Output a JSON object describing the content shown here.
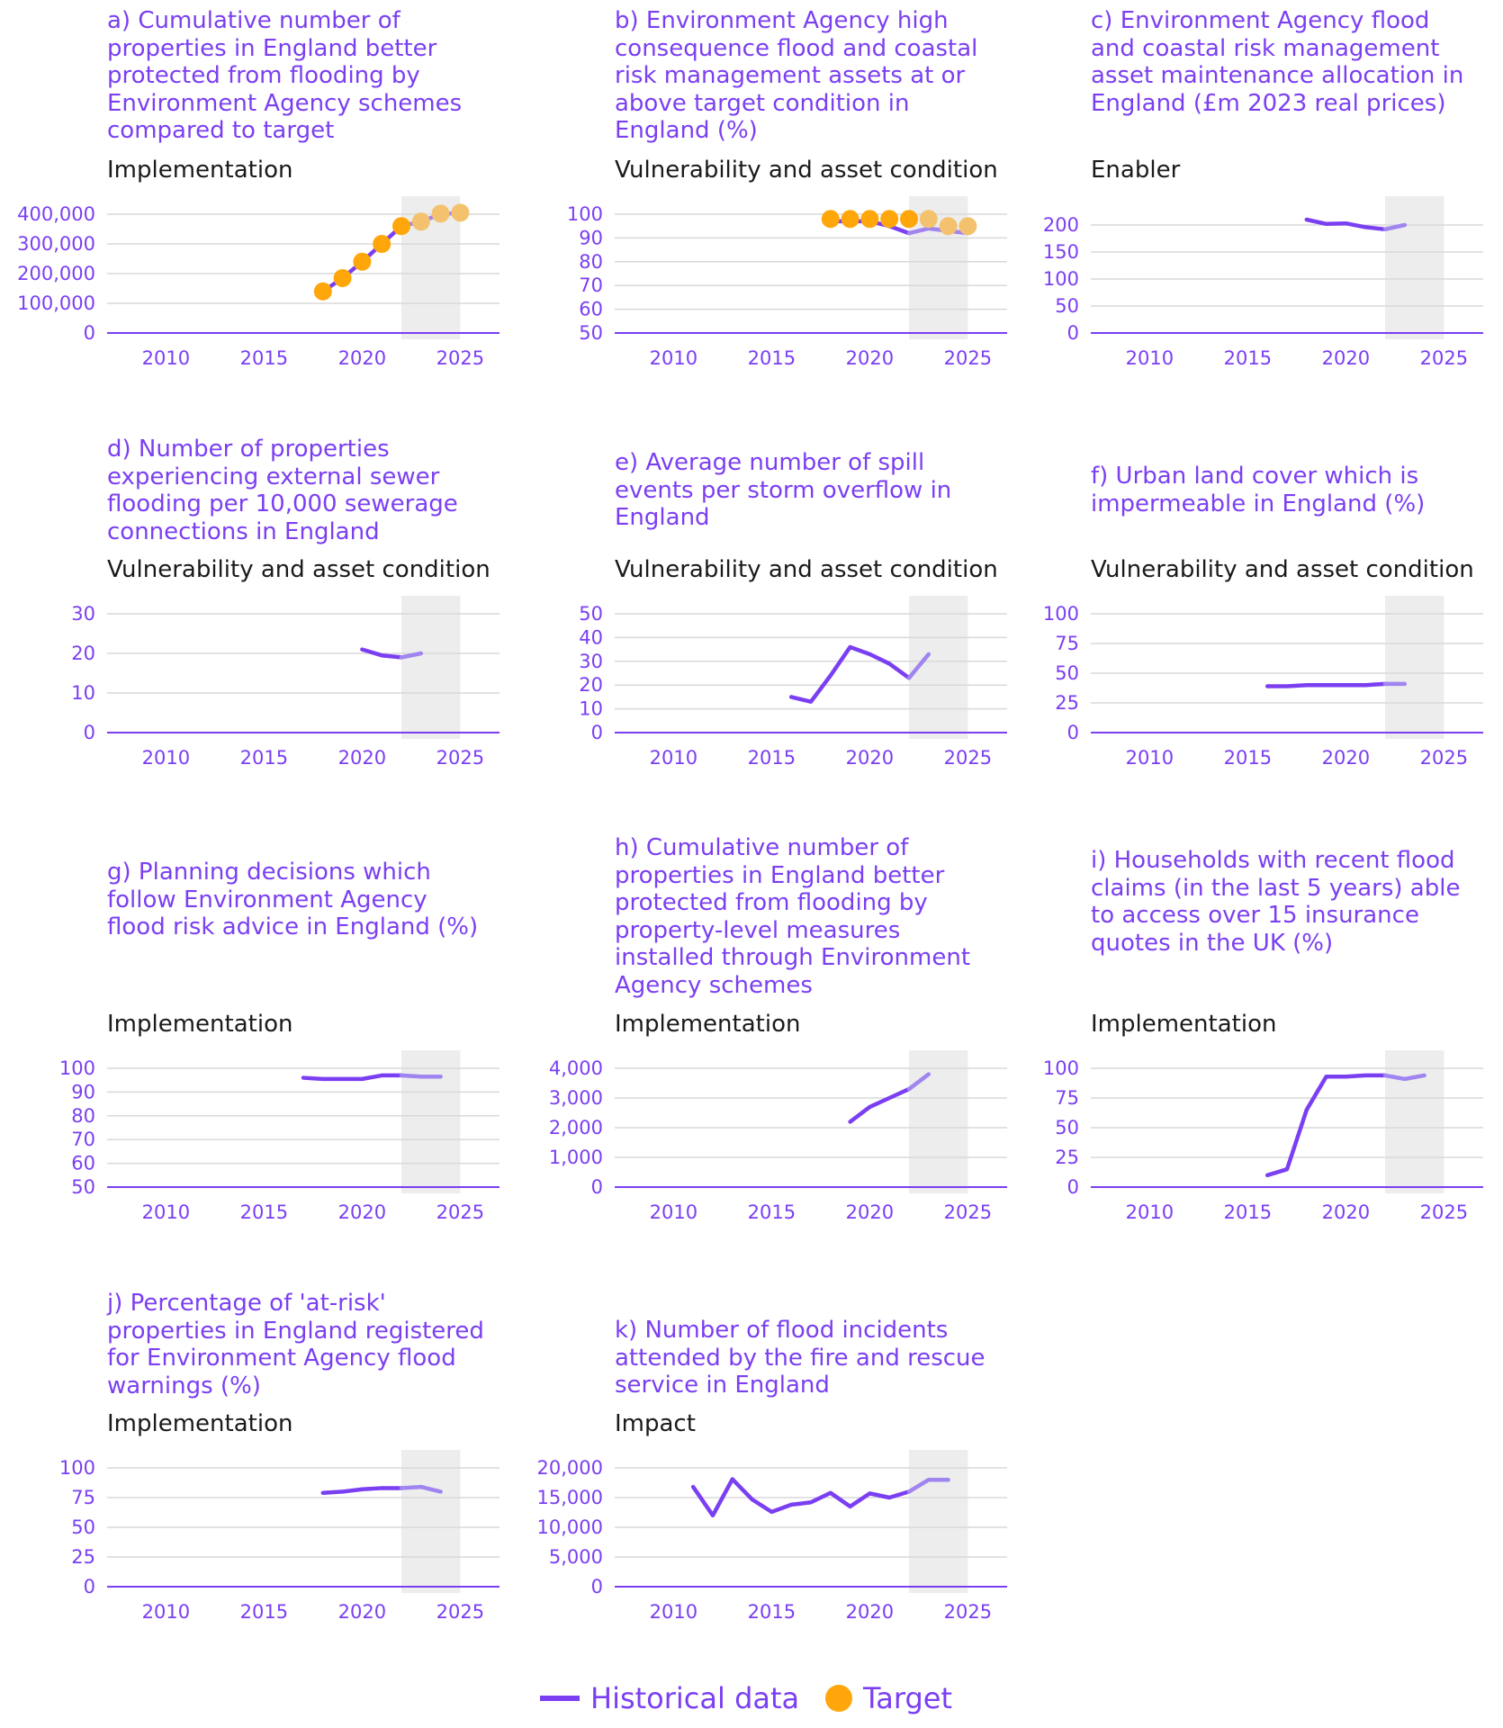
{
  "colors": {
    "historical": "#7B3FF2",
    "projection": "#A084F0",
    "target": "#FFA60A",
    "target_faded": "#F4C26E",
    "shading": "#EDEDED",
    "grid": "#D9D9D9"
  },
  "legend": {
    "historical": "Historical data",
    "target": "Target"
  },
  "chart_data": [
    {
      "id": "a",
      "type": "line",
      "title": "a) Cumulative number of properties in England better protected from flooding by Environment Agency schemes compared to target",
      "category": "Implementation",
      "xlim": [
        2007,
        2027
      ],
      "xticks": [
        2010,
        2015,
        2020,
        2025
      ],
      "ylim": [
        0,
        400000
      ],
      "yticks": [
        0,
        100000,
        200000,
        300000,
        400000
      ],
      "yticklabels": [
        "0",
        "100,000",
        "200,000",
        "300,000",
        "400,000"
      ],
      "shaded_from": 2022,
      "shaded_to": 2025,
      "series": [
        {
          "role": "historical",
          "x": [
            2018,
            2019,
            2020,
            2021,
            2022
          ],
          "values": [
            140000,
            185000,
            240000,
            300000,
            360000
          ]
        },
        {
          "role": "projection",
          "x": [
            2022,
            2023,
            2024,
            2025
          ],
          "values": [
            360000,
            375000,
            400000,
            405000
          ]
        },
        {
          "role": "target",
          "x": [
            2018,
            2019,
            2020,
            2021,
            2022,
            2023,
            2024,
            2025
          ],
          "values": [
            140000,
            185000,
            240000,
            300000,
            360000,
            375000,
            402000,
            405000
          ]
        }
      ]
    },
    {
      "id": "b",
      "type": "line",
      "title": "b) Environment Agency high consequence flood and coastal risk management assets at or above target condition in England (%)",
      "category": "Vulnerability and asset condition",
      "xlim": [
        2007,
        2027
      ],
      "xticks": [
        2010,
        2015,
        2020,
        2025
      ],
      "ylim": [
        50,
        100
      ],
      "yticks": [
        50,
        60,
        70,
        80,
        90,
        100
      ],
      "yticklabels": [
        "50",
        "60",
        "70",
        "80",
        "90",
        "100"
      ],
      "shaded_from": 2022,
      "shaded_to": 2025,
      "series": [
        {
          "role": "historical",
          "x": [
            2018,
            2019,
            2020,
            2021,
            2022
          ],
          "values": [
            97,
            97,
            97,
            95,
            92
          ]
        },
        {
          "role": "projection",
          "x": [
            2022,
            2023,
            2024,
            2025
          ],
          "values": [
            92,
            94,
            93,
            92
          ]
        },
        {
          "role": "target",
          "x": [
            2018,
            2019,
            2020,
            2021,
            2022,
            2023,
            2024,
            2025
          ],
          "values": [
            98,
            98,
            98,
            98,
            98,
            98,
            95,
            95
          ]
        }
      ]
    },
    {
      "id": "c",
      "type": "line",
      "title": "c) Environment Agency flood and coastal risk management asset maintenance allocation in England (£m 2023 real prices)",
      "category": "Enabler",
      "xlim": [
        2007,
        2027
      ],
      "xticks": [
        2010,
        2015,
        2020,
        2025
      ],
      "ylim": [
        0,
        220
      ],
      "yticks": [
        0,
        50,
        100,
        150,
        200
      ],
      "yticklabels": [
        "0",
        "50",
        "100",
        "150",
        "200"
      ],
      "shaded_from": 2022,
      "shaded_to": 2025,
      "series": [
        {
          "role": "historical",
          "x": [
            2018,
            2019,
            2020,
            2021,
            2022
          ],
          "values": [
            210,
            202,
            203,
            196,
            192
          ]
        },
        {
          "role": "projection",
          "x": [
            2022,
            2023
          ],
          "values": [
            192,
            200
          ]
        }
      ]
    },
    {
      "id": "d",
      "type": "line",
      "title": "d) Number of properties experiencing external sewer flooding per 10,000 sewerage connections in England",
      "category": "Vulnerability and asset condition",
      "xlim": [
        2007,
        2027
      ],
      "xticks": [
        2010,
        2015,
        2020,
        2025
      ],
      "ylim": [
        0,
        30
      ],
      "yticks": [
        0,
        10,
        20,
        30
      ],
      "yticklabels": [
        "0",
        "10",
        "20",
        "30"
      ],
      "shaded_from": 2022,
      "shaded_to": 2025,
      "series": [
        {
          "role": "historical",
          "x": [
            2020,
            2021,
            2022
          ],
          "values": [
            21,
            19.5,
            19
          ]
        },
        {
          "role": "projection",
          "x": [
            2022,
            2023
          ],
          "values": [
            19,
            20
          ]
        }
      ]
    },
    {
      "id": "e",
      "type": "line",
      "title": "e) Average number of spill events per storm overflow in England",
      "category": "Vulnerability and asset condition",
      "xlim": [
        2007,
        2027
      ],
      "xticks": [
        2010,
        2015,
        2020,
        2025
      ],
      "ylim": [
        0,
        50
      ],
      "yticks": [
        0,
        10,
        20,
        30,
        40,
        50
      ],
      "yticklabels": [
        "0",
        "10",
        "20",
        "30",
        "40",
        "50"
      ],
      "shaded_from": 2022,
      "shaded_to": 2025,
      "series": [
        {
          "role": "historical",
          "x": [
            2016,
            2017,
            2018,
            2019,
            2020,
            2021,
            2022
          ],
          "values": [
            15,
            13,
            24,
            36,
            33,
            29,
            23
          ]
        },
        {
          "role": "projection",
          "x": [
            2022,
            2023
          ],
          "values": [
            23,
            33
          ]
        }
      ]
    },
    {
      "id": "f",
      "type": "line",
      "title": "f) Urban land cover which is impermeable in England (%)",
      "category": "Vulnerability and asset condition",
      "xlim": [
        2007,
        2027
      ],
      "xticks": [
        2010,
        2015,
        2020,
        2025
      ],
      "ylim": [
        0,
        100
      ],
      "yticks": [
        0,
        25,
        50,
        75,
        100
      ],
      "yticklabels": [
        "0",
        "25",
        "50",
        "75",
        "100"
      ],
      "shaded_from": 2022,
      "shaded_to": 2025,
      "series": [
        {
          "role": "historical",
          "x": [
            2016,
            2017,
            2018,
            2019,
            2020,
            2021,
            2022
          ],
          "values": [
            39,
            39,
            40,
            40,
            40,
            40,
            41
          ]
        },
        {
          "role": "projection",
          "x": [
            2022,
            2023
          ],
          "values": [
            41,
            41
          ]
        }
      ]
    },
    {
      "id": "g",
      "type": "line",
      "title": "g) Planning decisions which follow Environment Agency flood risk advice in England (%)",
      "category": "Implementation",
      "xlim": [
        2007,
        2027
      ],
      "xticks": [
        2010,
        2015,
        2020,
        2025
      ],
      "ylim": [
        50,
        100
      ],
      "yticks": [
        50,
        60,
        70,
        80,
        90,
        100
      ],
      "yticklabels": [
        "50",
        "60",
        "70",
        "80",
        "90",
        "100"
      ],
      "shaded_from": 2022,
      "shaded_to": 2025,
      "series": [
        {
          "role": "historical",
          "x": [
            2017,
            2018,
            2019,
            2020,
            2021,
            2022
          ],
          "values": [
            96,
            95.5,
            95.5,
            95.5,
            97,
            97
          ]
        },
        {
          "role": "projection",
          "x": [
            2022,
            2023,
            2024
          ],
          "values": [
            97,
            96.5,
            96.5
          ]
        }
      ]
    },
    {
      "id": "h",
      "type": "line",
      "title": "h) Cumulative number of properties in England better protected from flooding by property-level measures installed through Environment Agency schemes",
      "category": "Implementation",
      "xlim": [
        2007,
        2027
      ],
      "xticks": [
        2010,
        2015,
        2020,
        2025
      ],
      "ylim": [
        0,
        4000
      ],
      "yticks": [
        0,
        1000,
        2000,
        3000,
        4000
      ],
      "yticklabels": [
        "0",
        "1,000",
        "2,000",
        "3,000",
        "4,000"
      ],
      "shaded_from": 2022,
      "shaded_to": 2025,
      "series": [
        {
          "role": "historical",
          "x": [
            2019,
            2020,
            2021,
            2022
          ],
          "values": [
            2200,
            2700,
            3000,
            3300
          ]
        },
        {
          "role": "projection",
          "x": [
            2022,
            2023
          ],
          "values": [
            3300,
            3800
          ]
        }
      ]
    },
    {
      "id": "i",
      "type": "line",
      "title": "i) Households with recent flood claims (in the last 5 years) able to access over 15 insurance quotes in the UK (%)",
      "category": "Implementation",
      "xlim": [
        2007,
        2027
      ],
      "xticks": [
        2010,
        2015,
        2020,
        2025
      ],
      "ylim": [
        0,
        100
      ],
      "yticks": [
        0,
        25,
        50,
        75,
        100
      ],
      "yticklabels": [
        "0",
        "25",
        "50",
        "75",
        "100"
      ],
      "shaded_from": 2022,
      "shaded_to": 2025,
      "series": [
        {
          "role": "historical",
          "x": [
            2016,
            2017,
            2018,
            2019,
            2020,
            2021,
            2022
          ],
          "values": [
            10,
            15,
            65,
            93,
            93,
            94,
            94
          ]
        },
        {
          "role": "projection",
          "x": [
            2022,
            2023,
            2024
          ],
          "values": [
            94,
            91,
            94
          ]
        }
      ]
    },
    {
      "id": "j",
      "type": "line",
      "title": "j) Percentage of 'at-risk' properties in England registered for Environment Agency flood warnings (%)",
      "category": "Implementation",
      "xlim": [
        2007,
        2027
      ],
      "xticks": [
        2010,
        2015,
        2020,
        2025
      ],
      "ylim": [
        0,
        100
      ],
      "yticks": [
        0,
        25,
        50,
        75,
        100
      ],
      "yticklabels": [
        "0",
        "25",
        "50",
        "75",
        "100"
      ],
      "shaded_from": 2022,
      "shaded_to": 2025,
      "series": [
        {
          "role": "historical",
          "x": [
            2018,
            2019,
            2020,
            2021,
            2022
          ],
          "values": [
            79,
            80,
            82,
            83,
            83
          ]
        },
        {
          "role": "projection",
          "x": [
            2022,
            2023,
            2024
          ],
          "values": [
            83,
            84,
            80
          ]
        }
      ]
    },
    {
      "id": "k",
      "type": "line",
      "title": "k) Number of flood incidents attended by the fire and rescue service in England",
      "category": "Impact",
      "xlim": [
        2007,
        2027
      ],
      "xticks": [
        2010,
        2015,
        2020,
        2025
      ],
      "ylim": [
        0,
        20000
      ],
      "yticks": [
        0,
        5000,
        10000,
        15000,
        20000
      ],
      "yticklabels": [
        "0",
        "5,000",
        "10,000",
        "15,000",
        "20,000"
      ],
      "shaded_from": 2022,
      "shaded_to": 2025,
      "series": [
        {
          "role": "historical",
          "x": [
            2011,
            2012,
            2013,
            2014,
            2015,
            2016,
            2017,
            2018,
            2019,
            2020,
            2021,
            2022
          ],
          "values": [
            16800,
            12000,
            18100,
            14700,
            12600,
            13800,
            14200,
            15800,
            13500,
            15700,
            15000,
            16000
          ]
        },
        {
          "role": "projection",
          "x": [
            2022,
            2023,
            2024
          ],
          "values": [
            16000,
            18000,
            18000
          ]
        }
      ]
    }
  ]
}
